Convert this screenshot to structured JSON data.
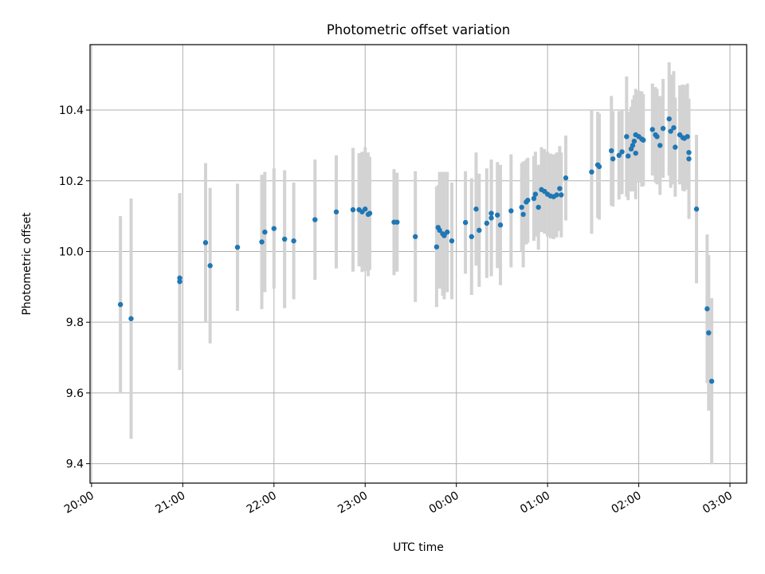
{
  "chart_data": {
    "type": "scatter",
    "title": "Photometric offset variation",
    "xlabel": "UTC time",
    "ylabel": "Photometric offset",
    "x_axis": "time (hours after 20:00 UTC)",
    "xlim": [
      "19:59",
      "03:11"
    ],
    "ylim": [
      9.345,
      10.585
    ],
    "xticks": [
      "20:00",
      "21:00",
      "22:00",
      "23:00",
      "00:00",
      "01:00",
      "02:00",
      "03:00"
    ],
    "yticks": [
      "9.4",
      "9.6",
      "9.8",
      "10.0",
      "10.2",
      "10.4"
    ],
    "grid": true,
    "colors": {
      "point": "#1f77b4",
      "errorbar": "#d3d3d3",
      "grid": "#b0b0b0"
    },
    "series": [
      {
        "points": [
          [
            "20:19",
            9.85,
            0.25
          ],
          [
            "20:26",
            9.81,
            0.34
          ],
          [
            "20:58",
            9.925,
            0.24
          ],
          [
            "20:58",
            9.915,
            0.25
          ],
          [
            "21:15",
            10.025,
            0.225
          ],
          [
            "21:18",
            9.96,
            0.22
          ],
          [
            "21:36",
            10.012,
            0.18
          ],
          [
            "21:52",
            10.027,
            0.19
          ],
          [
            "21:54",
            10.055,
            0.17
          ],
          [
            "22:00",
            10.065,
            0.17
          ],
          [
            "22:07",
            10.035,
            0.195
          ],
          [
            "22:13",
            10.03,
            0.165
          ],
          [
            "22:27",
            10.09,
            0.17
          ],
          [
            "22:41",
            10.112,
            0.16
          ],
          [
            "22:52",
            10.118,
            0.175
          ],
          [
            "22:56",
            10.118,
            0.16
          ],
          [
            "22:58",
            10.112,
            0.17
          ],
          [
            "23:00",
            10.12,
            0.175
          ],
          [
            "23:02",
            10.105,
            0.175
          ],
          [
            "23:03",
            10.108,
            0.16
          ],
          [
            "23:19",
            10.083,
            0.15
          ],
          [
            "23:21",
            10.083,
            0.14
          ],
          [
            "23:33",
            10.042,
            0.185
          ],
          [
            "23:47",
            10.013,
            0.17
          ],
          [
            "23:48",
            10.068,
            0.12
          ],
          [
            "23:49",
            10.06,
            0.165
          ],
          [
            "23:51",
            10.05,
            0.175
          ],
          [
            "23:52",
            10.045,
            0.18
          ],
          [
            "23:54",
            10.055,
            0.17
          ],
          [
            "23:57",
            10.03,
            0.165
          ],
          [
            "00:06",
            10.082,
            0.145
          ],
          [
            "00:10",
            10.042,
            0.165
          ],
          [
            "00:13",
            10.12,
            0.16
          ],
          [
            "00:15",
            10.06,
            0.16
          ],
          [
            "00:20",
            10.08,
            0.155
          ],
          [
            "00:23",
            10.095,
            0.165
          ],
          [
            "00:23",
            10.108,
            0.15
          ],
          [
            "00:27",
            10.103,
            0.15
          ],
          [
            "00:29",
            10.075,
            0.17
          ],
          [
            "00:36",
            10.115,
            0.16
          ],
          [
            "00:43",
            10.125,
            0.125
          ],
          [
            "00:44",
            10.105,
            0.15
          ],
          [
            "00:46",
            10.14,
            0.12
          ],
          [
            "00:47",
            10.145,
            0.12
          ],
          [
            "00:51",
            10.15,
            0.12
          ],
          [
            "00:52",
            10.162,
            0.12
          ],
          [
            "00:54",
            10.125,
            0.12
          ],
          [
            "00:56",
            10.175,
            0.12
          ],
          [
            "00:58",
            10.17,
            0.12
          ],
          [
            "01:00",
            10.162,
            0.12
          ],
          [
            "01:02",
            10.157,
            0.12
          ],
          [
            "01:04",
            10.155,
            0.12
          ],
          [
            "01:06",
            10.16,
            0.12
          ],
          [
            "01:08",
            10.178,
            0.12
          ],
          [
            "01:09",
            10.16,
            0.12
          ],
          [
            "01:12",
            10.208,
            0.12
          ],
          [
            "01:29",
            10.225,
            0.175
          ],
          [
            "01:33",
            10.245,
            0.15
          ],
          [
            "01:34",
            10.24,
            0.15
          ],
          [
            "01:42",
            10.285,
            0.155
          ],
          [
            "01:43",
            10.262,
            0.135
          ],
          [
            "01:47",
            10.272,
            0.125
          ],
          [
            "01:49",
            10.282,
            0.12
          ],
          [
            "01:52",
            10.325,
            0.17
          ],
          [
            "01:53",
            10.27,
            0.125
          ],
          [
            "01:55",
            10.29,
            0.12
          ],
          [
            "01:56",
            10.3,
            0.13
          ],
          [
            "01:57",
            10.312,
            0.13
          ],
          [
            "01:58",
            10.278,
            0.13
          ],
          [
            "01:58",
            10.33,
            0.13
          ],
          [
            "02:00",
            10.325,
            0.13
          ],
          [
            "02:02",
            10.318,
            0.135
          ],
          [
            "02:03",
            10.315,
            0.13
          ],
          [
            "02:09",
            10.345,
            0.13
          ],
          [
            "02:11",
            10.33,
            0.135
          ],
          [
            "02:12",
            10.325,
            0.135
          ],
          [
            "02:14",
            10.3,
            0.14
          ],
          [
            "02:16",
            10.348,
            0.14
          ],
          [
            "02:20",
            10.375,
            0.16
          ],
          [
            "02:21",
            10.34,
            0.16
          ],
          [
            "02:23",
            10.35,
            0.16
          ],
          [
            "02:24",
            10.295,
            0.14
          ],
          [
            "02:27",
            10.33,
            0.14
          ],
          [
            "02:29",
            10.322,
            0.15
          ],
          [
            "02:30",
            10.32,
            0.15
          ],
          [
            "02:32",
            10.325,
            0.15
          ],
          [
            "02:33",
            10.28,
            0.15
          ],
          [
            "02:33",
            10.262,
            0.17
          ],
          [
            "02:38",
            10.12,
            0.21
          ],
          [
            "02:45",
            9.838,
            0.21
          ],
          [
            "02:46",
            9.77,
            0.22
          ],
          [
            "02:48",
            9.633,
            0.235
          ]
        ]
      }
    ]
  }
}
